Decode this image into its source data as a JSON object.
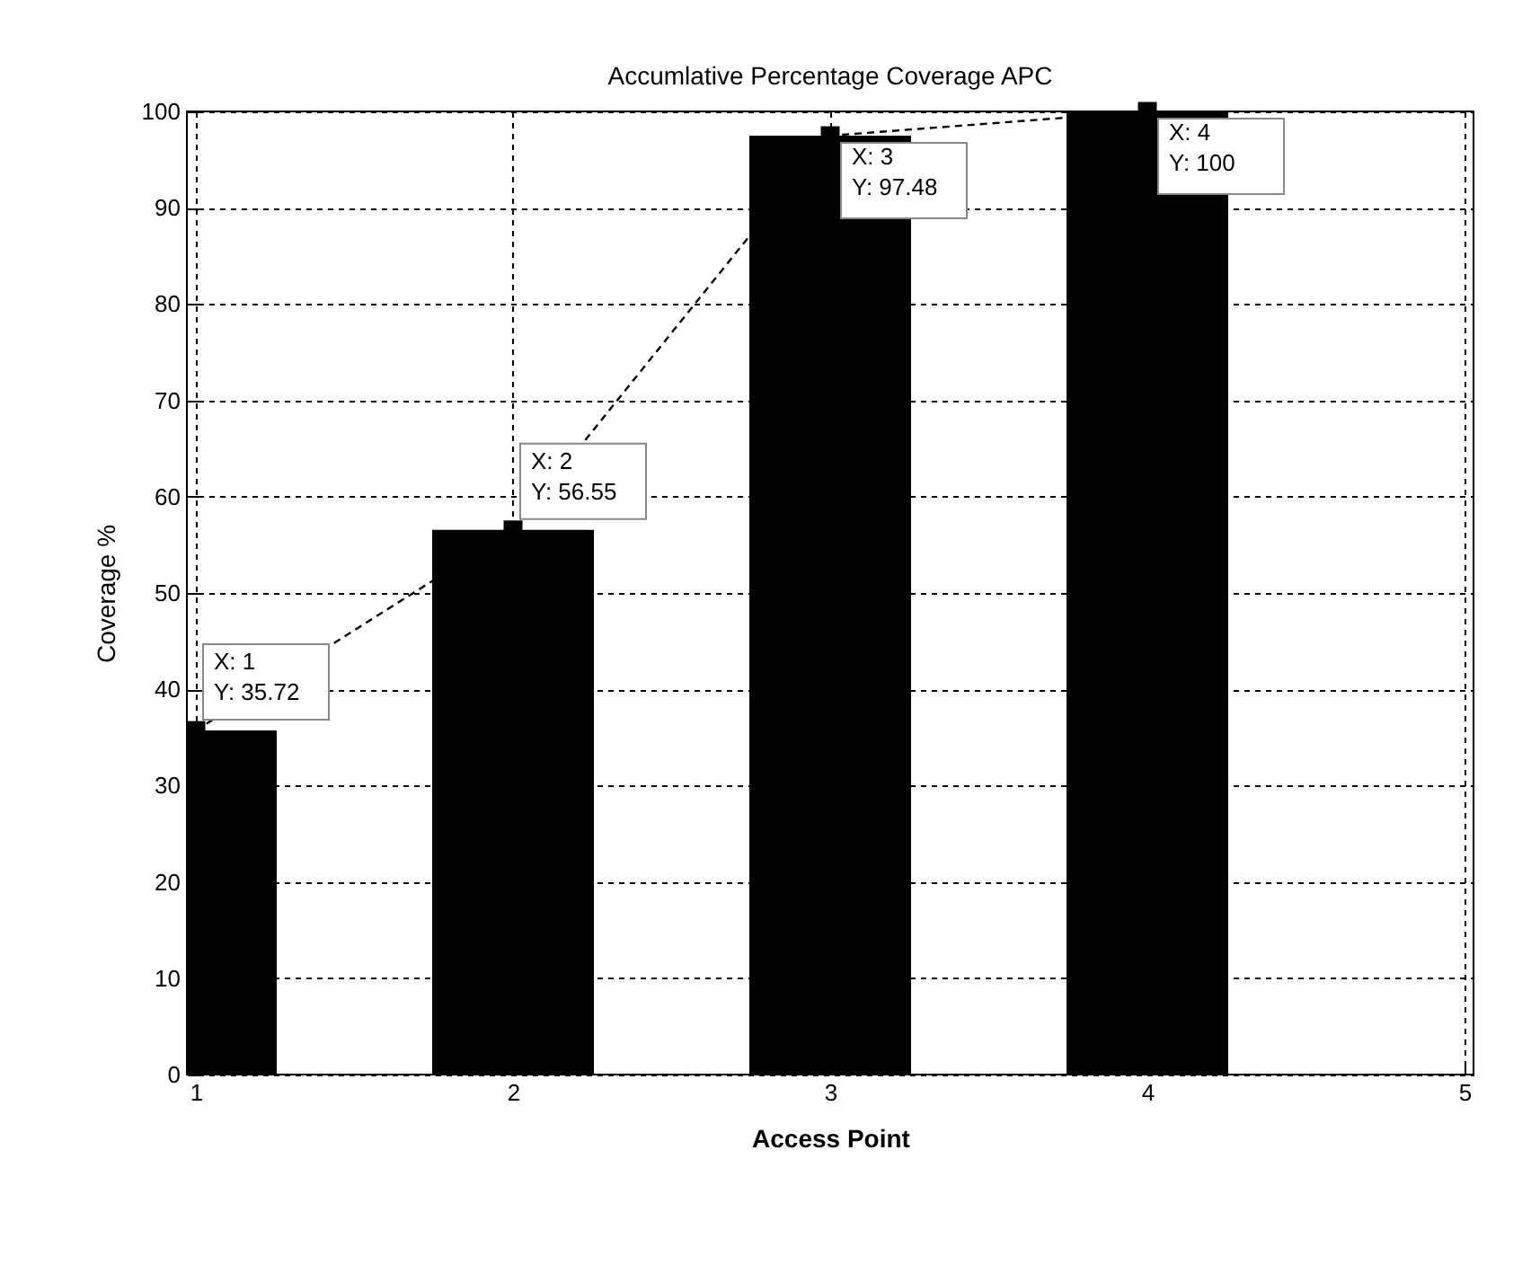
{
  "chart_data": {
    "type": "bar",
    "title": "Accumlative Percentage Coverage APC",
    "xlabel": "Access Point",
    "ylabel": "Coverage %",
    "x": [
      1,
      2,
      3,
      4
    ],
    "series": [
      {
        "color": "#000000",
        "values": [
          35.72,
          56.55,
          97.48,
          100
        ]
      },
      {
        "type": "line",
        "color": "#000000",
        "values": [
          35.72,
          56.55,
          97.48,
          100
        ],
        "line_style": "dashed",
        "marker": "square"
      }
    ],
    "xlim": [
      1,
      5
    ],
    "xticks": [
      1,
      2,
      3,
      4,
      5
    ],
    "ylim": [
      0,
      100
    ],
    "yticks": [
      0,
      10,
      20,
      30,
      40,
      50,
      60,
      70,
      80,
      90,
      100
    ],
    "grid": true,
    "annotations": [
      {
        "text": "X: 1\nY: 35.72",
        "x": 1,
        "y": 35.72
      },
      {
        "text": "X: 2\nY: 56.55",
        "x": 2,
        "y": 56.55
      },
      {
        "text": "X: 3\nY: 97.48",
        "x": 3,
        "y": 97.48
      },
      {
        "text": "X: 4\nY: 100",
        "x": 4,
        "y": 100
      }
    ]
  }
}
